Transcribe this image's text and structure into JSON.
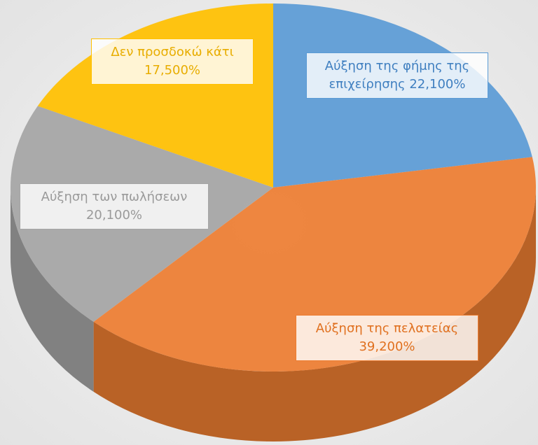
{
  "chart_data": {
    "type": "pie",
    "categories": [
      "Αύξηση της φήμης της επιχείρησης",
      "Αύξηση της πελατείας",
      "Αύξηση των πωλήσεων",
      "Δεν προσδοκώ κάτι"
    ],
    "values": [
      22.1,
      39.2,
      20.1,
      17.5
    ],
    "value_labels": [
      "22,100%",
      "39,200%",
      "20,100%",
      "17,500%"
    ],
    "colors": [
      "#5b9bd5",
      "#ed7d31",
      "#a5a5a5",
      "#ffc000"
    ]
  }
}
